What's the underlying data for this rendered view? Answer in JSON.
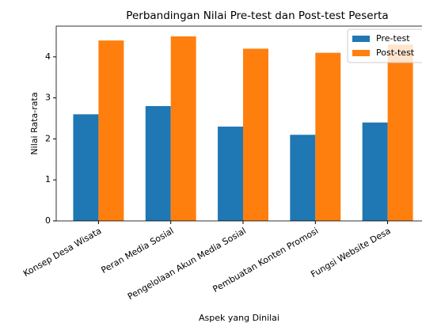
{
  "chart_data": {
    "type": "bar",
    "title": "Perbandingan Nilai Pre-test dan Post-test Peserta",
    "xlabel": "Aspek yang Dinilai",
    "ylabel": "Nilai Rata-rata",
    "categories": [
      "Konsep Desa Wisata",
      "Peran Media Sosial",
      "Pengelolaan Akun Media Sosial",
      "Pembuatan Konten Promosi",
      "Fungsi Website Desa"
    ],
    "series": [
      {
        "name": "Pre-test",
        "color": "#1f77b4",
        "values": [
          2.6,
          2.8,
          2.3,
          2.1,
          2.4
        ]
      },
      {
        "name": "Post-test",
        "color": "#ff7f0e",
        "values": [
          4.4,
          4.5,
          4.2,
          4.1,
          4.3
        ]
      }
    ],
    "ylim": [
      0,
      4.75
    ],
    "yticks": [
      0,
      1,
      2,
      3,
      4
    ],
    "legend": "upper right",
    "grid": false
  }
}
